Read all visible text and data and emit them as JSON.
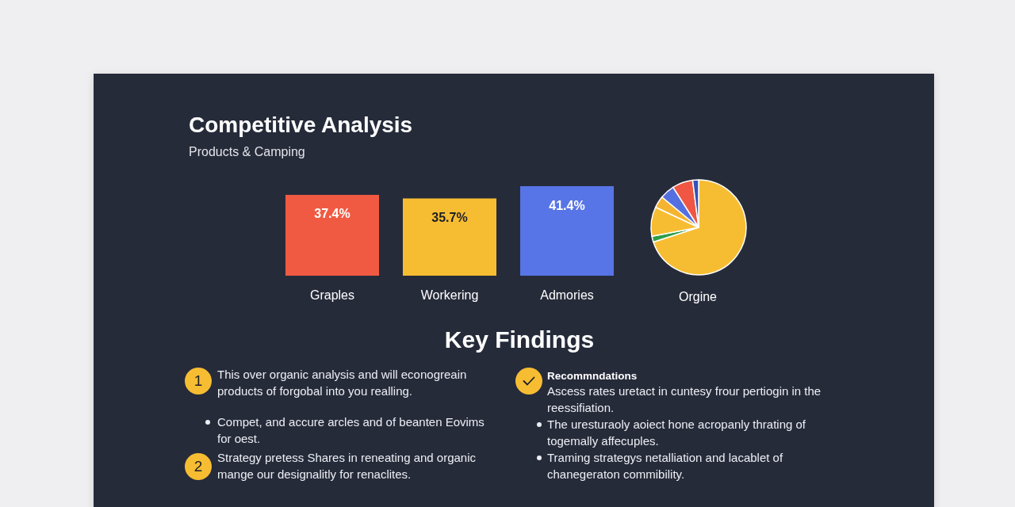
{
  "chart_data": [
    {
      "type": "bar",
      "title": "Competitive Analysis",
      "subtitle": "Products & Camping",
      "categories": [
        "Graples",
        "Workering",
        "Admories"
      ],
      "values": [
        37.4,
        35.7,
        41.4
      ],
      "colors": [
        "#f15a42",
        "#f7bd32",
        "#5775e6"
      ],
      "value_labels": [
        "37.4%",
        "35.7%",
        "41.4%"
      ]
    },
    {
      "type": "pie",
      "title": "Orgine",
      "categories": [
        null,
        null,
        null,
        null,
        null,
        null,
        null
      ],
      "values": [
        70,
        2,
        10,
        4,
        5,
        7,
        2
      ],
      "colors": [
        "#f7bd32",
        "#2e9e48",
        "#f7bd32",
        "#f5b430",
        "#5470e0",
        "#ef5643",
        "#3550b8"
      ]
    },
    {
      "type": "other",
      "title": "Key Findings",
      "annotations": [
        "1",
        "This over organic analysis and will econogreain products of forgobal into you realling.",
        "Compet, and accure arcles and of beanten Eovims for oest.",
        "2",
        "Strategy pretess Shares in reneating and organic mange our designalitly for renaclites.",
        "Recommndations",
        "Ascess rates uretact in cuntesy frour pertiogin in the reessifiation.",
        "The uresturaoly aoiect hone acropanly thrating of togemally affecuples.",
        "Traming strategys netalliation and lacablet of chanegeraton commibility."
      ]
    }
  ]
}
